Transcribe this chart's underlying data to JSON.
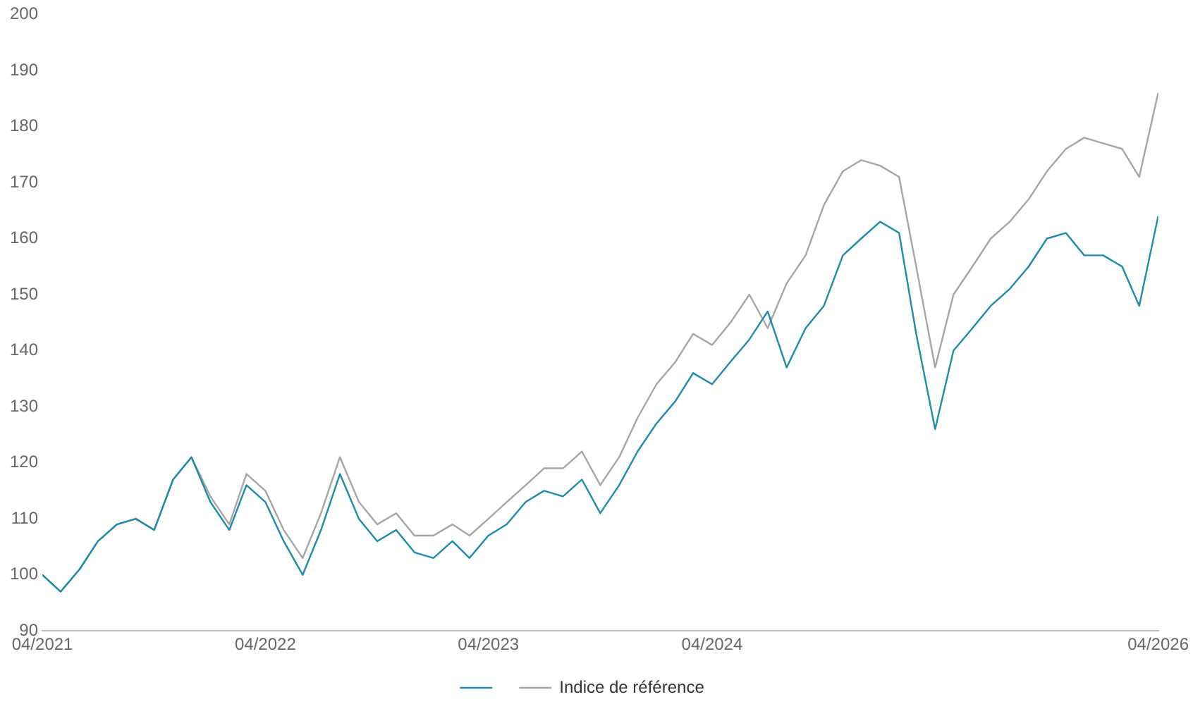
{
  "chart_data": {
    "type": "line",
    "x": [
      "2021-04",
      "2021-05",
      "2021-06",
      "2021-07",
      "2021-08",
      "2021-09",
      "2021-10",
      "2021-11",
      "2021-12",
      "2022-01",
      "2022-02",
      "2022-03",
      "2022-04",
      "2022-05",
      "2022-06",
      "2022-07",
      "2022-08",
      "2022-09",
      "2022-10",
      "2022-11",
      "2022-12",
      "2023-01",
      "2023-02",
      "2023-03",
      "2023-04",
      "2023-05",
      "2023-06",
      "2023-07",
      "2023-08",
      "2023-09",
      "2023-10",
      "2023-11",
      "2023-12",
      "2024-01",
      "2024-02",
      "2024-03",
      "2024-04",
      "2024-05",
      "2024-06",
      "2024-07",
      "2024-08",
      "2024-09",
      "2024-10",
      "2024-11",
      "2024-12",
      "2025-01",
      "2025-02",
      "2025-03",
      "2025-04",
      "2025-05",
      "2025-06",
      "2025-07",
      "2025-08",
      "2025-09",
      "2025-10",
      "2025-11",
      "2025-12",
      "2026-01",
      "2026-02",
      "2026-03",
      "2026-04"
    ],
    "series": [
      {
        "color": "#1f8bab",
        "values": [
          100,
          97,
          101,
          106,
          109,
          110,
          108,
          117,
          121,
          113,
          108,
          116,
          113,
          106,
          100,
          108,
          118,
          110,
          106,
          108,
          104,
          103,
          106,
          103,
          107,
          109,
          113,
          115,
          114,
          117,
          111,
          116,
          122,
          127,
          131,
          136,
          134,
          138,
          142,
          147,
          137,
          144,
          148,
          157,
          160,
          163,
          161,
          143,
          126,
          140,
          144,
          148,
          151,
          155,
          160,
          161,
          157,
          157,
          155,
          148,
          164
        ]
      },
      {
        "name": "Indice de référence",
        "color": "#a6a6a6",
        "values": [
          100,
          97,
          101,
          106,
          109,
          110,
          108,
          117,
          121,
          114,
          109,
          118,
          115,
          108,
          103,
          111,
          121,
          113,
          109,
          111,
          107,
          107,
          109,
          107,
          110,
          113,
          116,
          119,
          119,
          122,
          116,
          121,
          128,
          134,
          138,
          143,
          141,
          145,
          150,
          144,
          152,
          157,
          166,
          172,
          174,
          173,
          171,
          155,
          137,
          150,
          155,
          160,
          163,
          167,
          172,
          176,
          178,
          177,
          176,
          171,
          186
        ]
      }
    ],
    "xlim": [
      "2021-04",
      "2026-04"
    ],
    "xticks": [
      {
        "value": "2021-04",
        "label": "04/2021"
      },
      {
        "value": "2022-04",
        "label": "04/2022"
      },
      {
        "value": "2023-04",
        "label": "04/2023"
      },
      {
        "value": "2024-04",
        "label": "04/2024"
      },
      {
        "value": "2026-04",
        "label": "04/2026"
      }
    ],
    "ylim": [
      90,
      200
    ],
    "yticks": [
      90,
      100,
      110,
      120,
      130,
      140,
      150,
      160,
      170,
      180,
      190,
      200
    ],
    "grid": false,
    "legend": "bottom",
    "marker": "none",
    "line_style": "solid"
  }
}
